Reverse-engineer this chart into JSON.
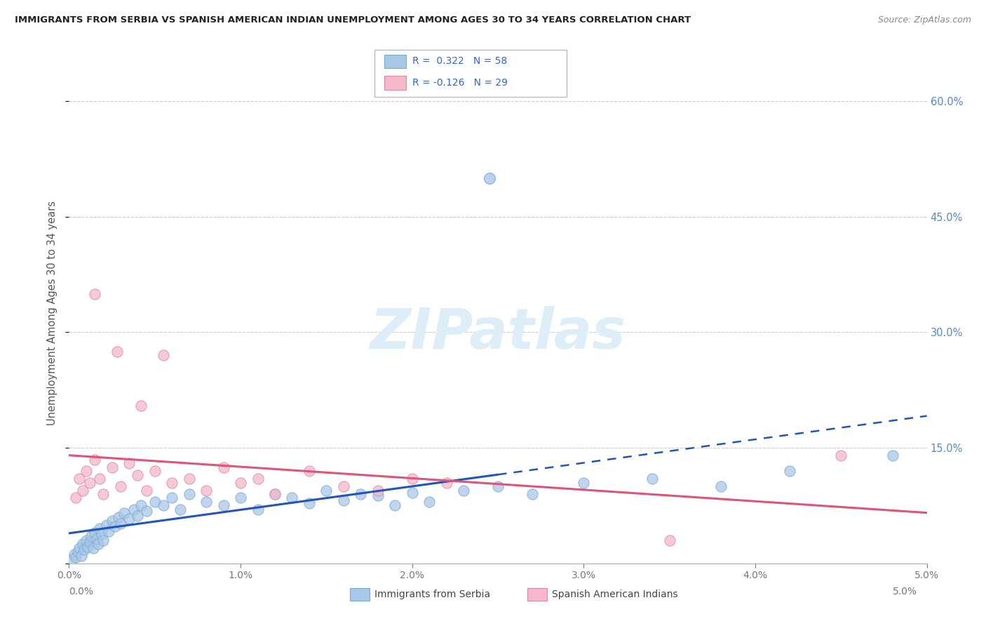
{
  "title": "IMMIGRANTS FROM SERBIA VS SPANISH AMERICAN INDIAN UNEMPLOYMENT AMONG AGES 30 TO 34 YEARS CORRELATION CHART",
  "source": "Source: ZipAtlas.com",
  "ylabel": "Unemployment Among Ages 30 to 34 years",
  "xlim": [
    0.0,
    5.0
  ],
  "ylim": [
    0.0,
    65.0
  ],
  "yticks": [
    0,
    15,
    30,
    45,
    60
  ],
  "legend_blue_label": "Immigrants from Serbia",
  "legend_pink_label": "Spanish American Indians",
  "R_blue": "0.322",
  "N_blue": "58",
  "R_pink": "-0.126",
  "N_pink": "29",
  "blue_color": "#a8c8e8",
  "blue_edge_color": "#7aaad0",
  "pink_color": "#f4b8c8",
  "pink_edge_color": "#d888a8",
  "blue_line_color": "#2255bb",
  "pink_line_color": "#dd5577",
  "watermark_color": "#ddeef8",
  "watermark": "ZIPatlas",
  "title_color": "#222222",
  "source_color": "#888888",
  "axis_color": "#aaaaaa",
  "tick_color": "#777777",
  "right_tick_color": "#5588cc",
  "ylabel_color": "#555555",
  "blue_x": [
    0.02,
    0.03,
    0.04,
    0.05,
    0.06,
    0.07,
    0.08,
    0.09,
    0.1,
    0.11,
    0.12,
    0.13,
    0.14,
    0.15,
    0.16,
    0.17,
    0.18,
    0.19,
    0.2,
    0.22,
    0.23,
    0.25,
    0.27,
    0.29,
    0.3,
    0.32,
    0.35,
    0.38,
    0.4,
    0.42,
    0.45,
    0.5,
    0.55,
    0.6,
    0.65,
    0.7,
    0.8,
    0.9,
    1.0,
    1.1,
    1.2,
    1.3,
    1.4,
    1.5,
    1.6,
    1.7,
    1.8,
    1.9,
    2.0,
    2.1,
    2.3,
    2.5,
    2.7,
    3.0,
    3.4,
    3.8,
    4.2,
    4.8
  ],
  "blue_y": [
    0.5,
    1.2,
    0.8,
    1.5,
    2.0,
    1.0,
    2.5,
    1.8,
    3.0,
    2.2,
    2.8,
    3.5,
    2.0,
    4.0,
    3.2,
    2.5,
    4.5,
    3.8,
    3.0,
    5.0,
    4.2,
    5.5,
    4.8,
    6.0,
    5.2,
    6.5,
    5.8,
    7.0,
    6.2,
    7.5,
    6.8,
    8.0,
    7.5,
    8.5,
    7.0,
    9.0,
    8.0,
    7.5,
    8.5,
    7.0,
    9.0,
    8.5,
    7.8,
    9.5,
    8.2,
    9.0,
    8.8,
    7.5,
    9.2,
    8.0,
    9.5,
    10.0,
    9.0,
    10.5,
    11.0,
    10.0,
    12.0,
    14.0
  ],
  "blue_outlier_x": 2.45,
  "blue_outlier_y": 50.0,
  "pink_x": [
    0.04,
    0.06,
    0.08,
    0.1,
    0.12,
    0.15,
    0.18,
    0.2,
    0.25,
    0.3,
    0.35,
    0.4,
    0.45,
    0.5,
    0.55,
    0.6,
    0.7,
    0.8,
    0.9,
    1.0,
    1.1,
    1.2,
    1.4,
    1.6,
    1.8,
    2.0,
    2.2,
    3.5,
    4.5
  ],
  "pink_y": [
    8.5,
    11.0,
    9.5,
    12.0,
    10.5,
    13.5,
    11.0,
    9.0,
    12.5,
    10.0,
    13.0,
    11.5,
    9.5,
    12.0,
    27.0,
    10.5,
    11.0,
    9.5,
    12.5,
    10.5,
    11.0,
    9.0,
    12.0,
    10.0,
    9.5,
    11.0,
    10.5,
    3.0,
    14.0
  ],
  "pink_outlier_x": 0.15,
  "pink_outlier_y": 35.0,
  "pink_outlier2_x": 0.28,
  "pink_outlier2_y": 27.5,
  "pink_outlier3_x": 0.42,
  "pink_outlier3_y": 20.5
}
